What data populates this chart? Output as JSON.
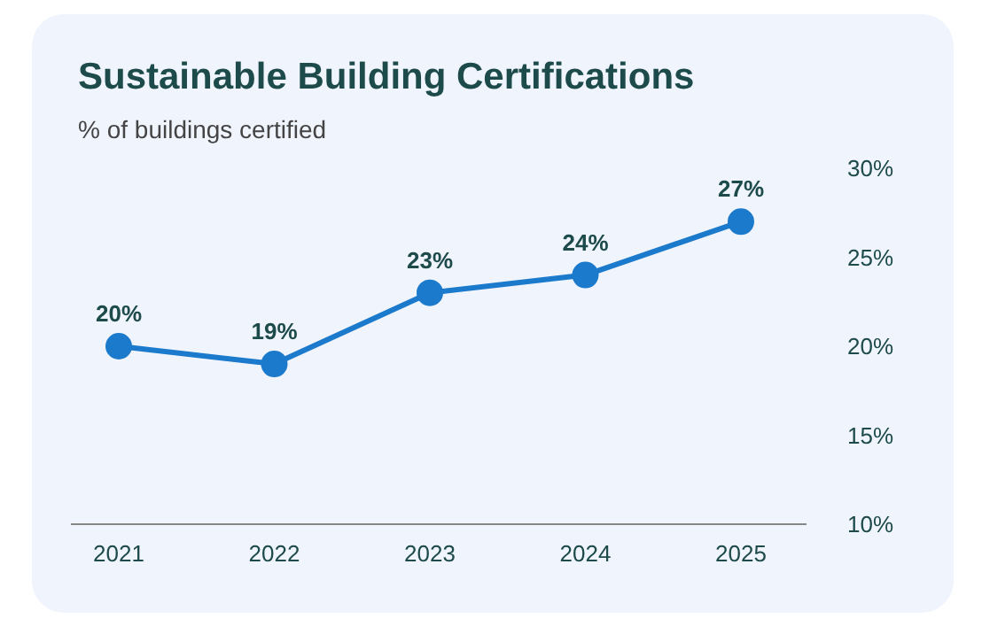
{
  "chart_data": {
    "type": "line",
    "title": "Sustainable Building Certifications",
    "subtitle": "% of buildings certified",
    "categories": [
      "2021",
      "2022",
      "2023",
      "2024",
      "2025"
    ],
    "series": [
      {
        "color": "#1b7acb",
        "values": [
          20,
          19,
          23,
          24,
          27
        ],
        "value_labels": [
          "20%",
          "19%",
          "23%",
          "24%",
          "27%"
        ]
      }
    ],
    "ylim": [
      10,
      30
    ],
    "yticks": [
      {
        "value": 10,
        "label": "10%"
      },
      {
        "value": 15,
        "label": "15%"
      },
      {
        "value": 20,
        "label": "20%"
      },
      {
        "value": 25,
        "label": "25%"
      },
      {
        "value": 30,
        "label": "30%"
      }
    ],
    "grid": false,
    "legend": false,
    "marker": "circle",
    "line_style": "solid"
  }
}
